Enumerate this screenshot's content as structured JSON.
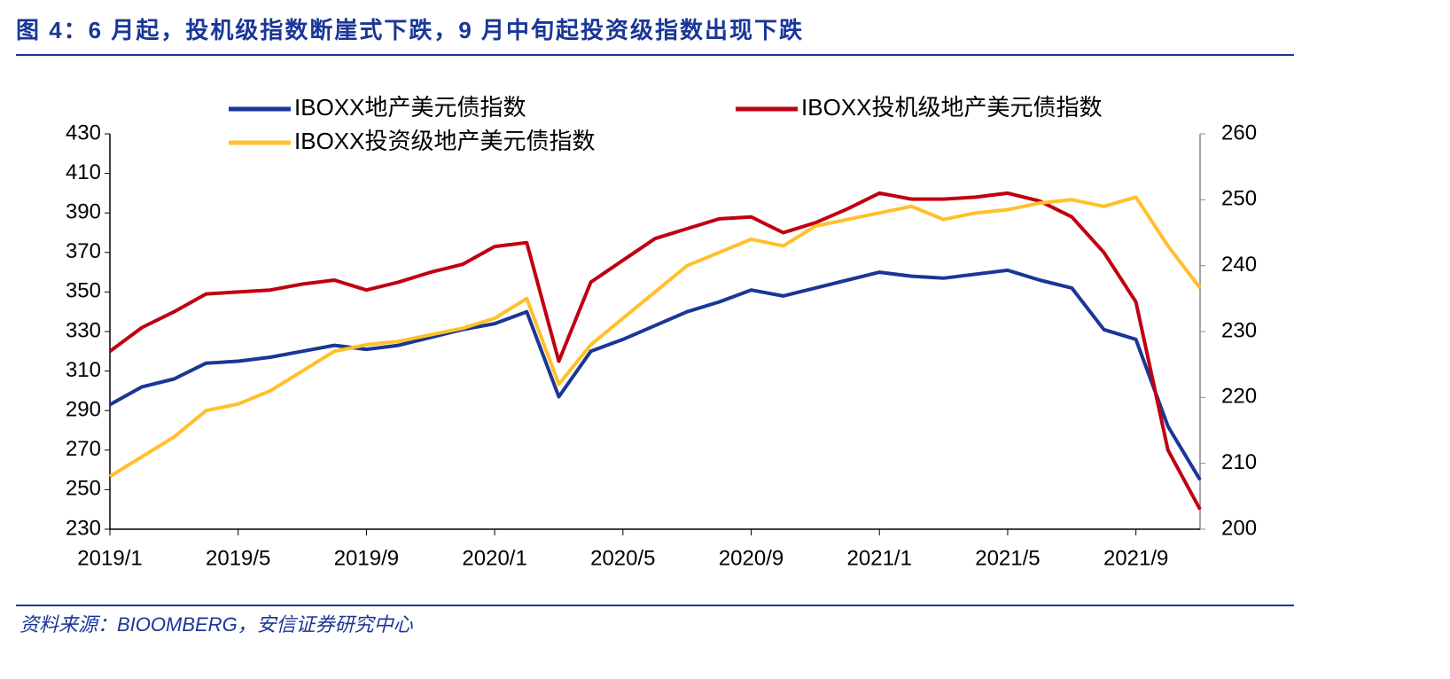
{
  "chart_data": {
    "type": "line",
    "title": "图 4：6 月起，投机级指数断崖式下跌，9 月中旬起投资级指数出现下跌",
    "source": "资料来源：BIOOMBERG，安信证券研究中心",
    "legend": "top",
    "x": [
      "2019/1",
      "2019/2",
      "2019/3",
      "2019/4",
      "2019/5",
      "2019/6",
      "2019/7",
      "2019/8",
      "2019/9",
      "2019/10",
      "2019/11",
      "2019/12",
      "2020/1",
      "2020/2",
      "2020/3",
      "2020/4",
      "2020/5",
      "2020/6",
      "2020/7",
      "2020/8",
      "2020/9",
      "2020/10",
      "2020/11",
      "2020/12",
      "2021/1",
      "2021/2",
      "2021/3",
      "2021/4",
      "2021/5",
      "2021/6",
      "2021/7",
      "2021/8",
      "2021/9",
      "2021/10",
      "2021/11"
    ],
    "xticks": [
      "2019/1",
      "2019/5",
      "2019/9",
      "2020/1",
      "2020/5",
      "2020/9",
      "2021/1",
      "2021/5",
      "2021/9"
    ],
    "ylim": [
      230,
      430
    ],
    "yticks": [
      230,
      250,
      270,
      290,
      310,
      330,
      350,
      370,
      390,
      410,
      430
    ],
    "y2lim": [
      200,
      260
    ],
    "y2ticks": [
      200,
      210,
      220,
      230,
      240,
      250,
      260
    ],
    "series": [
      {
        "name": "IBOXX地产美元债指数",
        "color": "#1a3696",
        "values": [
          293,
          302,
          306,
          314,
          315,
          317,
          320,
          323,
          321,
          323,
          327,
          331,
          334,
          340,
          297,
          320,
          326,
          333,
          340,
          345,
          351,
          348,
          352,
          356,
          360,
          358,
          357,
          359,
          361,
          356,
          352,
          331,
          326,
          282,
          255
        ]
      },
      {
        "name": "IBOXX投机级地产美元债指数",
        "color": "#c00010",
        "values": [
          320,
          332,
          340,
          349,
          350,
          351,
          354,
          356,
          351,
          355,
          360,
          364,
          373,
          375,
          315,
          355,
          366,
          377,
          382,
          387,
          388,
          380,
          385,
          392,
          400,
          397,
          397,
          398,
          400,
          396,
          388,
          370,
          345,
          270,
          240
        ]
      },
      {
        "name": "IBOXX投资级地产美元债指数",
        "color": "#ffc02a",
        "axis": "y2",
        "values": [
          208,
          211,
          214,
          218,
          219,
          221,
          224,
          227,
          228,
          228.5,
          229.5,
          230.5,
          232,
          235,
          222,
          228,
          232,
          236,
          240,
          242,
          244,
          243,
          246,
          247,
          248,
          249,
          247,
          248,
          248.5,
          249.5,
          250,
          249,
          250.4,
          243,
          236.6
        ]
      }
    ]
  }
}
